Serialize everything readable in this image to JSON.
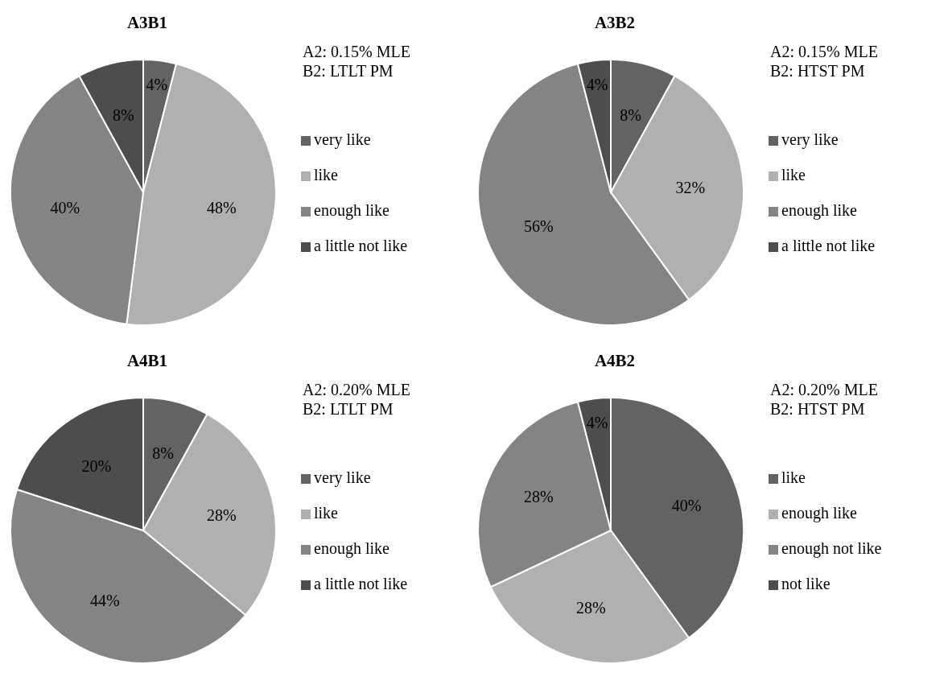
{
  "chart_data": [
    {
      "type": "pie",
      "title": "A3B1",
      "categories": [
        "very like",
        "like",
        "enough like",
        "a little not like"
      ],
      "values": [
        4,
        48,
        40,
        8
      ],
      "value_labels": [
        "4%",
        "48%",
        "40%",
        "8%"
      ],
      "colors": [
        "#636363",
        "#b0b0b0",
        "#848484",
        "#4d4d4d"
      ],
      "legend": "right",
      "annotations": [
        "A2: 0.15% MLE",
        "B2: LTLT PM"
      ]
    },
    {
      "type": "pie",
      "title": "A3B2",
      "categories": [
        "very like",
        "like",
        "enough like",
        "a little not like"
      ],
      "values": [
        8,
        32,
        56,
        4
      ],
      "value_labels": [
        "8%",
        "32%",
        "56%",
        "4%"
      ],
      "colors": [
        "#636363",
        "#b0b0b0",
        "#848484",
        "#4d4d4d"
      ],
      "legend": "right",
      "annotations": [
        "A2: 0.15% MLE",
        "B2: HTST PM"
      ]
    },
    {
      "type": "pie",
      "title": "A4B1",
      "categories": [
        "very like",
        "like",
        "enough like",
        "a little not like"
      ],
      "values": [
        8,
        28,
        44,
        20
      ],
      "value_labels": [
        "8%",
        "28%",
        "44%",
        "20%"
      ],
      "colors": [
        "#636363",
        "#b0b0b0",
        "#848484",
        "#4d4d4d"
      ],
      "legend": "right",
      "annotations": [
        "A2: 0.20% MLE",
        "B2: LTLT PM"
      ]
    },
    {
      "type": "pie",
      "title": "A4B2",
      "categories": [
        "like",
        "enough like",
        "enough not like",
        "not like"
      ],
      "values": [
        40,
        28,
        28,
        4
      ],
      "value_labels": [
        "40%",
        "28%",
        "28%",
        "4%"
      ],
      "colors": [
        "#636363",
        "#b0b0b0",
        "#848484",
        "#4d4d4d"
      ],
      "legend": "right",
      "annotations": [
        "A2: 0.20% MLE",
        "B2: HTST PM"
      ]
    }
  ]
}
